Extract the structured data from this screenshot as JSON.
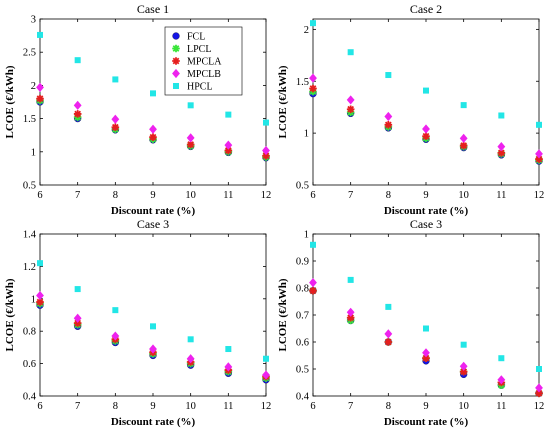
{
  "colors": {
    "FCL": "#1515e6",
    "LPCL": "#39e639",
    "MPCLA": "#e61e1e",
    "MPCLB": "#ee22ee",
    "HPCL": "#22e6e6"
  },
  "chart_data": [
    {
      "type": "scatter",
      "title": "Case 1",
      "xlabel": "Discount rate (%)",
      "ylabel": "LCOE (€/kWh)",
      "xlim": [
        6,
        12
      ],
      "ylim": [
        0.5,
        3
      ],
      "x_ticks": [
        "6",
        "7",
        "8",
        "9",
        "10",
        "11",
        "12"
      ],
      "y_ticks": [
        "0.5",
        "1",
        "1.5",
        "2",
        "2.5",
        "3"
      ],
      "x": [
        6,
        7,
        8,
        9,
        10,
        11,
        12
      ],
      "legend": {
        "position": "top-right",
        "entries": [
          "FCL",
          "LPCL",
          "MPCLA",
          "MPCLB",
          "HPCL"
        ]
      },
      "series": [
        {
          "name": "FCL",
          "marker": "circle",
          "values": [
            1.75,
            1.5,
            1.33,
            1.18,
            1.08,
            0.99,
            0.91
          ]
        },
        {
          "name": "LPCL",
          "marker": "star",
          "values": [
            1.77,
            1.52,
            1.34,
            1.19,
            1.09,
            1.0,
            0.92
          ]
        },
        {
          "name": "MPCLA",
          "marker": "star",
          "values": [
            1.8,
            1.57,
            1.37,
            1.22,
            1.11,
            1.02,
            0.94
          ]
        },
        {
          "name": "MPCLB",
          "marker": "diamond",
          "values": [
            1.97,
            1.7,
            1.49,
            1.34,
            1.21,
            1.1,
            1.02
          ]
        },
        {
          "name": "HPCL",
          "marker": "square",
          "values": [
            2.76,
            2.38,
            2.09,
            1.88,
            1.7,
            1.56,
            1.44
          ]
        }
      ]
    },
    {
      "type": "scatter",
      "title": "Case 2",
      "xlabel": "Discount rate (%)",
      "ylabel": "LCOE (€/kWh)",
      "xlim": [
        6,
        12
      ],
      "ylim": [
        0.5,
        2.1
      ],
      "x_ticks": [
        "6",
        "7",
        "8",
        "9",
        "10",
        "11",
        "12"
      ],
      "y_ticks": [
        "0.5",
        "1",
        "1.5",
        "2"
      ],
      "x": [
        6,
        7,
        8,
        9,
        10,
        11,
        12
      ],
      "series": [
        {
          "name": "FCL",
          "marker": "circle",
          "values": [
            1.38,
            1.19,
            1.05,
            0.94,
            0.86,
            0.79,
            0.73
          ]
        },
        {
          "name": "LPCL",
          "marker": "star",
          "values": [
            1.4,
            1.2,
            1.06,
            0.95,
            0.87,
            0.8,
            0.74
          ]
        },
        {
          "name": "MPCLA",
          "marker": "star",
          "values": [
            1.43,
            1.23,
            1.08,
            0.97,
            0.88,
            0.81,
            0.75
          ]
        },
        {
          "name": "MPCLB",
          "marker": "diamond",
          "values": [
            1.53,
            1.32,
            1.16,
            1.04,
            0.95,
            0.87,
            0.8
          ]
        },
        {
          "name": "HPCL",
          "marker": "square",
          "values": [
            2.06,
            1.78,
            1.56,
            1.41,
            1.27,
            1.17,
            1.08
          ]
        }
      ]
    },
    {
      "type": "scatter",
      "title": "Case 3",
      "xlabel": "Discount rate (%)",
      "ylabel": "LCOE (€/kWh)",
      "xlim": [
        6,
        12
      ],
      "ylim": [
        0.4,
        1.4
      ],
      "x_ticks": [
        "6",
        "7",
        "8",
        "9",
        "10",
        "11",
        "12"
      ],
      "y_ticks": [
        "0.4",
        "0.6",
        "0.8",
        "1",
        "1.2",
        "1.4"
      ],
      "x": [
        6,
        7,
        8,
        9,
        10,
        11,
        12
      ],
      "series": [
        {
          "name": "FCL",
          "marker": "circle",
          "values": [
            0.96,
            0.83,
            0.73,
            0.65,
            0.59,
            0.54,
            0.5
          ]
        },
        {
          "name": "LPCL",
          "marker": "star",
          "values": [
            0.97,
            0.84,
            0.74,
            0.66,
            0.6,
            0.55,
            0.51
          ]
        },
        {
          "name": "MPCLA",
          "marker": "star",
          "values": [
            0.98,
            0.85,
            0.75,
            0.67,
            0.61,
            0.56,
            0.52
          ]
        },
        {
          "name": "MPCLB",
          "marker": "diamond",
          "values": [
            1.02,
            0.88,
            0.77,
            0.69,
            0.63,
            0.58,
            0.53
          ]
        },
        {
          "name": "HPCL",
          "marker": "square",
          "values": [
            1.22,
            1.06,
            0.93,
            0.83,
            0.75,
            0.69,
            0.63
          ]
        }
      ]
    },
    {
      "type": "scatter",
      "title": "Case 3",
      "xlabel": "Discount rate (%)",
      "ylabel": "LCOE (€/kWh)",
      "xlim": [
        6,
        12
      ],
      "ylim": [
        0.4,
        1
      ],
      "x_ticks": [
        "6",
        "7",
        "8",
        "9",
        "10",
        "11",
        "12"
      ],
      "y_ticks": [
        "0.4",
        "0.5",
        "0.6",
        "0.7",
        "0.8",
        "0.9",
        "1"
      ],
      "x": [
        6,
        7,
        8,
        9,
        10,
        11,
        12
      ],
      "series": [
        {
          "name": "FCL",
          "marker": "circle",
          "values": [
            0.79,
            0.68,
            0.6,
            0.53,
            0.48,
            0.44,
            0.41
          ]
        },
        {
          "name": "LPCL",
          "marker": "star",
          "values": [
            0.79,
            0.68,
            0.6,
            0.54,
            0.49,
            0.44,
            0.41
          ]
        },
        {
          "name": "MPCLA",
          "marker": "star",
          "values": [
            0.79,
            0.69,
            0.6,
            0.54,
            0.49,
            0.45,
            0.41
          ]
        },
        {
          "name": "MPCLB",
          "marker": "diamond",
          "values": [
            0.82,
            0.71,
            0.63,
            0.56,
            0.51,
            0.46,
            0.43
          ]
        },
        {
          "name": "HPCL",
          "marker": "square",
          "values": [
            0.96,
            0.83,
            0.73,
            0.65,
            0.59,
            0.54,
            0.5
          ]
        }
      ]
    }
  ]
}
